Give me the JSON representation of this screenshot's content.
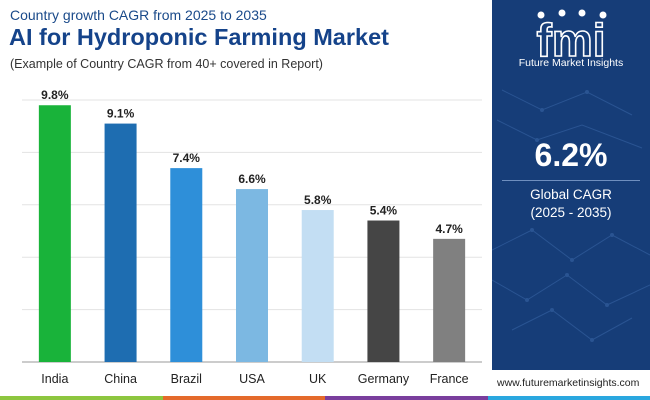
{
  "header": {
    "subtitle": "Country growth CAGR from 2025 to 2035",
    "title": "AI for Hydroponic Farming Market",
    "note": "(Example of Country CAGR from 40+ covered in Report)"
  },
  "chart_data": {
    "type": "bar",
    "categories": [
      "India",
      "China",
      "Brazil",
      "USA",
      "UK",
      "Germany",
      "France"
    ],
    "values": [
      9.8,
      9.1,
      7.4,
      6.6,
      5.8,
      5.4,
      4.7
    ],
    "data_labels": [
      "9.8%",
      "9.1%",
      "7.4%",
      "6.6%",
      "5.8%",
      "5.4%",
      "4.7%"
    ],
    "colors": [
      "#19b33a",
      "#1e6db1",
      "#2e8fd9",
      "#7cb8e2",
      "#c3def3",
      "#454545",
      "#808080"
    ],
    "ylim": [
      0,
      10
    ],
    "grid": true,
    "legend": "none"
  },
  "side_panel": {
    "brand": "Future Market Insights",
    "logo_glyphs": "fmi",
    "global_cagr_value": "6.2%",
    "global_cagr_label": "Global CAGR",
    "global_cagr_period": "(2025 - 2035)",
    "background_color": "#163d78"
  },
  "footer": {
    "website": "www.futuremarketinsights.com",
    "bar_colors": [
      "#8dc63f",
      "#e46a2b",
      "#7a3e9d",
      "#2aa7df"
    ]
  }
}
